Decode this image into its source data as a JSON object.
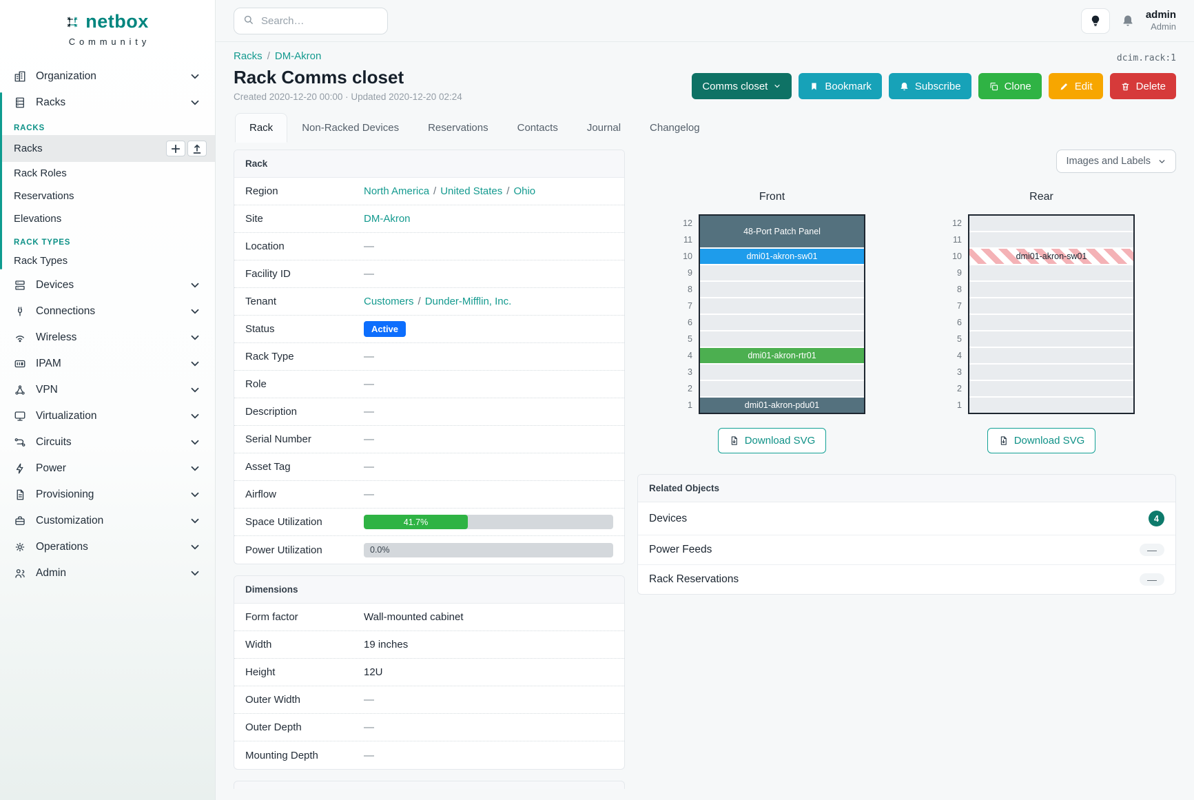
{
  "brand": {
    "name": "netbox",
    "tagline": "Community"
  },
  "topbar": {
    "search_placeholder": "Search…",
    "user": {
      "name": "admin",
      "role": "Admin"
    }
  },
  "sidebar": {
    "items": [
      {
        "label": "Organization",
        "icon": "organization-icon",
        "chevron": true
      },
      {
        "label": "Racks",
        "icon": "racks-icon",
        "chevron": true,
        "expanded": true,
        "sections": [
          {
            "heading": "RACKS",
            "links": [
              {
                "label": "Racks",
                "active": true,
                "actions": [
                  {
                    "name": "add-rack-button",
                    "icon": "plus-icon"
                  },
                  {
                    "name": "import-racks-button",
                    "icon": "import-icon"
                  }
                ]
              },
              {
                "label": "Rack Roles"
              },
              {
                "label": "Reservations"
              },
              {
                "label": "Elevations"
              }
            ]
          },
          {
            "heading": "RACK TYPES",
            "links": [
              {
                "label": "Rack Types"
              }
            ]
          }
        ]
      },
      {
        "label": "Devices",
        "icon": "devices-icon",
        "chevron": true
      },
      {
        "label": "Connections",
        "icon": "connections-icon",
        "chevron": true
      },
      {
        "label": "Wireless",
        "icon": "wireless-icon",
        "chevron": true
      },
      {
        "label": "IPAM",
        "icon": "ipam-icon",
        "chevron": true
      },
      {
        "label": "VPN",
        "icon": "vpn-icon",
        "chevron": true
      },
      {
        "label": "Virtualization",
        "icon": "virtualization-icon",
        "chevron": true
      },
      {
        "label": "Circuits",
        "icon": "circuits-icon",
        "chevron": true
      },
      {
        "label": "Power",
        "icon": "power-icon",
        "chevron": true
      },
      {
        "label": "Provisioning",
        "icon": "provisioning-icon",
        "chevron": true
      },
      {
        "label": "Customization",
        "icon": "customization-icon",
        "chevron": true
      },
      {
        "label": "Operations",
        "icon": "operations-icon",
        "chevron": true
      },
      {
        "label": "Admin",
        "icon": "admin-icon",
        "chevron": true
      }
    ]
  },
  "page": {
    "breadcrumb": [
      {
        "label": "Racks"
      },
      {
        "label": "DM-Akron"
      }
    ],
    "object_id": "dcim.rack:1",
    "title": "Rack Comms closet",
    "meta": "Created 2020-12-20 00:00 · Updated 2020-12-20 02:24",
    "actions": [
      {
        "label": "Comms closet",
        "color": "#0e7265",
        "caret": true,
        "name": "comms-closet-dropdown-button"
      },
      {
        "label": "Bookmark",
        "color": "#17a2b8",
        "icon": "bookmark-icon",
        "name": "bookmark-button"
      },
      {
        "label": "Subscribe",
        "color": "#17a2b8",
        "icon": "bell-icon",
        "name": "subscribe-button"
      },
      {
        "label": "Clone",
        "color": "#2fb344",
        "icon": "copy-icon",
        "name": "clone-button"
      },
      {
        "label": "Edit",
        "color": "#f7a600",
        "icon": "pencil-icon",
        "name": "edit-button"
      },
      {
        "label": "Delete",
        "color": "#d63a3a",
        "icon": "trash-icon",
        "name": "delete-button"
      }
    ],
    "tabs": [
      {
        "label": "Rack",
        "active": true
      },
      {
        "label": "Non-Racked Devices"
      },
      {
        "label": "Reservations"
      },
      {
        "label": "Contacts"
      },
      {
        "label": "Journal"
      },
      {
        "label": "Changelog"
      }
    ]
  },
  "rack_panel": {
    "title": "Rack",
    "rows": [
      {
        "label": "Region",
        "type": "links",
        "links": [
          "North America",
          "United States",
          "Ohio"
        ]
      },
      {
        "label": "Site",
        "type": "links",
        "links": [
          "DM-Akron"
        ]
      },
      {
        "label": "Location",
        "type": "empty",
        "value": "—"
      },
      {
        "label": "Facility ID",
        "type": "empty",
        "value": "—"
      },
      {
        "label": "Tenant",
        "type": "links",
        "links": [
          "Customers",
          "Dunder-Mifflin, Inc."
        ]
      },
      {
        "label": "Status",
        "type": "badge",
        "value": "Active",
        "color": "#0d6efd"
      },
      {
        "label": "Rack Type",
        "type": "empty",
        "value": "—"
      },
      {
        "label": "Role",
        "type": "empty",
        "value": "—"
      },
      {
        "label": "Description",
        "type": "empty",
        "value": "—"
      },
      {
        "label": "Serial Number",
        "type": "empty",
        "value": "—"
      },
      {
        "label": "Asset Tag",
        "type": "empty",
        "value": "—"
      },
      {
        "label": "Airflow",
        "type": "empty",
        "value": "—"
      },
      {
        "label": "Space Utilization",
        "type": "progress",
        "percent": 41.7,
        "display": "41.7%",
        "bar_color": "#2fb344"
      },
      {
        "label": "Power Utilization",
        "type": "progress",
        "percent": 0.0,
        "display": "0.0%",
        "bar_color": "#2fb344"
      }
    ]
  },
  "dimensions_panel": {
    "title": "Dimensions",
    "rows": [
      {
        "label": "Form factor",
        "type": "text",
        "value": "Wall-mounted cabinet"
      },
      {
        "label": "Width",
        "type": "text",
        "value": "19 inches"
      },
      {
        "label": "Height",
        "type": "text",
        "value": "12U"
      },
      {
        "label": "Outer Width",
        "type": "empty",
        "value": "—"
      },
      {
        "label": "Outer Depth",
        "type": "empty",
        "value": "—"
      },
      {
        "label": "Mounting Depth",
        "type": "empty",
        "value": "—"
      }
    ]
  },
  "elevations": {
    "view_filter": "Images and Labels",
    "download_label": "Download SVG",
    "racks": [
      {
        "title": "Front",
        "u_count": 12,
        "units": [
          {
            "u": 12,
            "span": 2,
            "label": "48-Port Patch Panel",
            "bg": "#54717e",
            "fg": "#ffffff"
          },
          {
            "u": 10,
            "span": 1,
            "label": "dmi01-akron-sw01",
            "bg": "#1e9ceb",
            "fg": "#ffffff"
          },
          {
            "u": 9,
            "span": 1,
            "empty": true
          },
          {
            "u": 8,
            "span": 1,
            "empty": true
          },
          {
            "u": 7,
            "span": 1,
            "empty": true
          },
          {
            "u": 6,
            "span": 1,
            "empty": true
          },
          {
            "u": 5,
            "span": 1,
            "empty": true
          },
          {
            "u": 4,
            "span": 1,
            "label": "dmi01-akron-rtr01",
            "bg": "#4caf50",
            "fg": "#ffffff"
          },
          {
            "u": 3,
            "span": 1,
            "empty": true
          },
          {
            "u": 2,
            "span": 1,
            "empty": true
          },
          {
            "u": 1,
            "span": 1,
            "label": "dmi01-akron-pdu01",
            "bg": "#54717e",
            "fg": "#ffffff"
          }
        ]
      },
      {
        "title": "Rear",
        "u_count": 12,
        "units": [
          {
            "u": 12,
            "span": 1,
            "empty": true
          },
          {
            "u": 11,
            "span": 1,
            "empty": true
          },
          {
            "u": 10,
            "span": 1,
            "label": "dmi01-akron-sw01",
            "striped": true,
            "fg": "#212b36"
          },
          {
            "u": 9,
            "span": 1,
            "empty": true
          },
          {
            "u": 8,
            "span": 1,
            "empty": true
          },
          {
            "u": 7,
            "span": 1,
            "empty": true
          },
          {
            "u": 6,
            "span": 1,
            "empty": true
          },
          {
            "u": 5,
            "span": 1,
            "empty": true
          },
          {
            "u": 4,
            "span": 1,
            "empty": true
          },
          {
            "u": 3,
            "span": 1,
            "empty": true
          },
          {
            "u": 2,
            "span": 1,
            "empty": true
          },
          {
            "u": 1,
            "span": 1,
            "empty": true
          }
        ]
      }
    ]
  },
  "related_objects": {
    "title": "Related Objects",
    "rows": [
      {
        "label": "Devices",
        "count": "4",
        "badge_color": "#0d7a6b"
      },
      {
        "label": "Power Feeds",
        "dash": "—"
      },
      {
        "label": "Rack Reservations",
        "dash": "—"
      }
    ]
  }
}
